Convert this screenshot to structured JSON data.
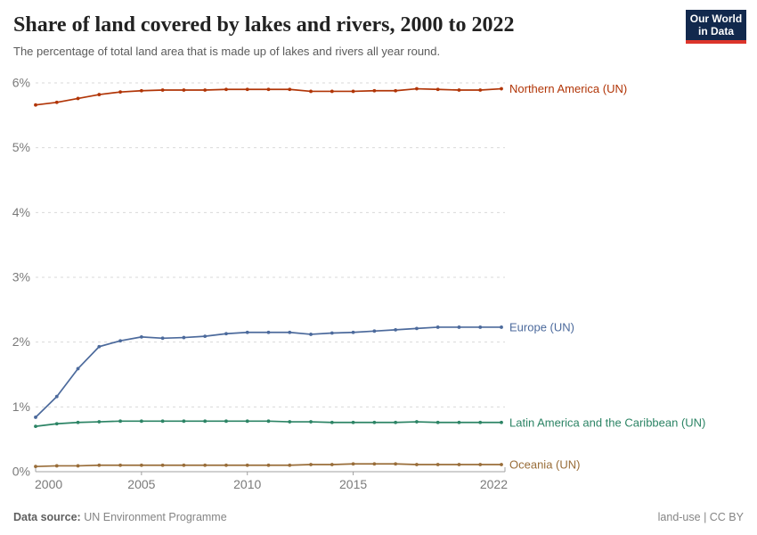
{
  "chart_data": {
    "type": "line",
    "title": "Share of land covered by lakes and rivers, 2000 to 2022",
    "subtitle": "The percentage of total land area that is made up of lakes and rivers all year round.",
    "x": [
      2000,
      2001,
      2002,
      2003,
      2004,
      2005,
      2006,
      2007,
      2008,
      2009,
      2010,
      2011,
      2012,
      2013,
      2014,
      2015,
      2016,
      2017,
      2018,
      2019,
      2020,
      2021,
      2022
    ],
    "series": [
      {
        "name": "Northern America (UN)",
        "color": "#B13507",
        "values": [
          5.66,
          5.7,
          5.76,
          5.82,
          5.86,
          5.88,
          5.89,
          5.89,
          5.89,
          5.9,
          5.9,
          5.9,
          5.9,
          5.87,
          5.87,
          5.87,
          5.88,
          5.88,
          5.91,
          5.9,
          5.89,
          5.89,
          5.91
        ]
      },
      {
        "name": "Europe (UN)",
        "color": "#4C6A9C",
        "values": [
          0.84,
          1.16,
          1.59,
          1.93,
          2.02,
          2.08,
          2.06,
          2.07,
          2.09,
          2.13,
          2.15,
          2.15,
          2.15,
          2.12,
          2.14,
          2.15,
          2.17,
          2.19,
          2.21,
          2.23,
          2.23,
          2.23,
          2.23
        ]
      },
      {
        "name": "Latin America and the Caribbean (UN)",
        "color": "#2C8465",
        "values": [
          0.7,
          0.74,
          0.76,
          0.77,
          0.78,
          0.78,
          0.78,
          0.78,
          0.78,
          0.78,
          0.78,
          0.78,
          0.77,
          0.77,
          0.76,
          0.76,
          0.76,
          0.76,
          0.77,
          0.76,
          0.76,
          0.76,
          0.76
        ]
      },
      {
        "name": "Oceania (UN)",
        "color": "#996D39",
        "values": [
          0.08,
          0.09,
          0.09,
          0.1,
          0.1,
          0.1,
          0.1,
          0.1,
          0.1,
          0.1,
          0.1,
          0.1,
          0.1,
          0.11,
          0.11,
          0.12,
          0.12,
          0.12,
          0.11,
          0.11,
          0.11,
          0.11,
          0.11
        ]
      }
    ],
    "ylim": [
      0,
      6
    ],
    "yticks": [
      0,
      1,
      2,
      3,
      4,
      5,
      6
    ],
    "ytick_suffix": "%",
    "xticks": [
      2000,
      2005,
      2010,
      2015,
      2022
    ],
    "grid": "horizontal-dashed",
    "legend_position": "right-of-line-end",
    "grid_color": "#d9d9d9",
    "axis_color": "#a0a0a0",
    "tick_label_color": "#7a7a7a"
  },
  "logo": {
    "line1": "Our World",
    "line2": "in Data",
    "bg_color": "#12294D",
    "accent_color": "#DC352B"
  },
  "footer": {
    "datasource_label": "Data source:",
    "datasource_value": " UN Environment Programme",
    "right_text": "land-use | CC BY"
  }
}
